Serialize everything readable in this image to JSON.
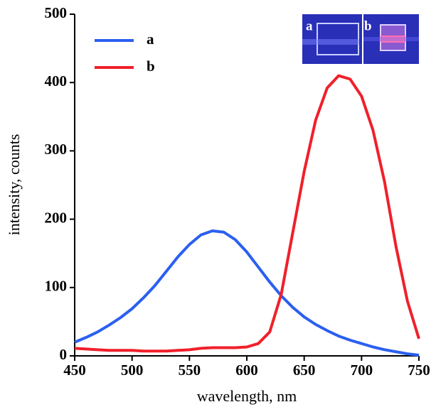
{
  "chart_data": {
    "type": "line",
    "x_label": "wavelength, nm",
    "y_label": "intensity, counts",
    "x": [
      450,
      460,
      470,
      480,
      490,
      500,
      510,
      520,
      530,
      540,
      550,
      560,
      570,
      580,
      590,
      600,
      610,
      620,
      630,
      640,
      650,
      660,
      670,
      680,
      690,
      700,
      710,
      720,
      730,
      740,
      750
    ],
    "series": [
      {
        "name": "a",
        "color": "#2b5ff0",
        "values": [
          20,
          27,
          35,
          45,
          56,
          69,
          85,
          103,
          124,
          145,
          163,
          177,
          183,
          181,
          170,
          152,
          130,
          108,
          88,
          71,
          57,
          46,
          37,
          29,
          23,
          18,
          13,
          9,
          6,
          3,
          1
        ]
      },
      {
        "name": "b",
        "color": "#f0202a",
        "values": [
          11,
          10,
          9,
          8,
          8,
          8,
          7,
          7,
          7,
          8,
          9,
          11,
          12,
          12,
          12,
          13,
          18,
          35,
          90,
          180,
          270,
          345,
          392,
          410,
          405,
          380,
          330,
          255,
          160,
          80,
          25
        ]
      }
    ],
    "xlim": [
      450,
      750
    ],
    "xticks": [
      450,
      500,
      550,
      600,
      650,
      700,
      750
    ],
    "ylim": [
      0,
      500
    ],
    "yticks": [
      0,
      100,
      200,
      300,
      400,
      500
    ],
    "legend": "upper-left",
    "inset_labels": [
      "a",
      "b"
    ]
  }
}
